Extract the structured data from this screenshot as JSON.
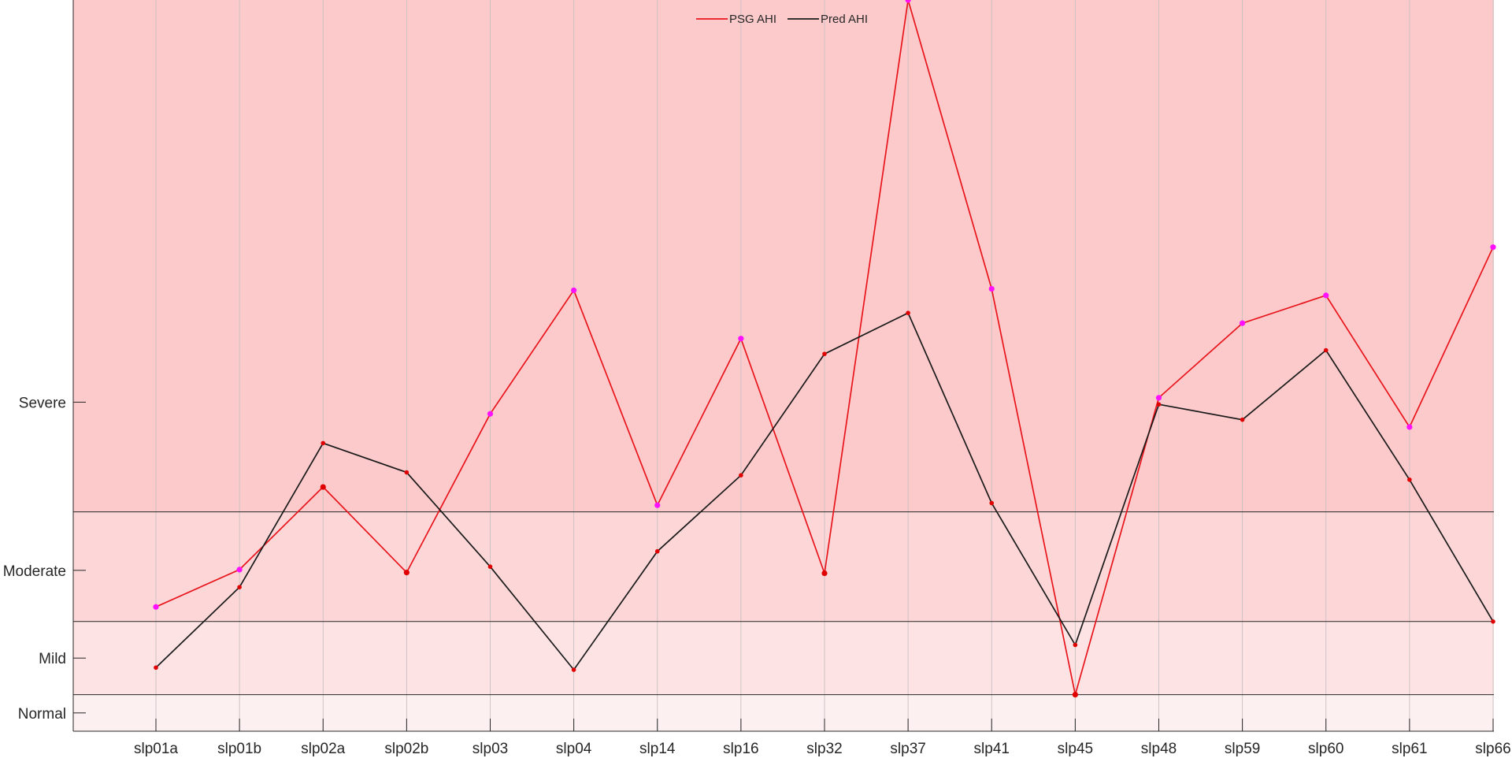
{
  "chart_data": {
    "type": "line",
    "categories": [
      "slp01a",
      "slp01b",
      "slp02a",
      "slp02b",
      "slp03",
      "slp04",
      "slp14",
      "slp16",
      "slp32",
      "slp37",
      "slp41",
      "slp45",
      "slp48",
      "slp59",
      "slp60",
      "slp61",
      "slp66"
    ],
    "ylim": [
      -5,
      95
    ],
    "bands": [
      {
        "label": "Normal",
        "from": -5,
        "to": 0,
        "color": "#fdf0f0"
      },
      {
        "label": "Mild",
        "from": 0,
        "to": 10,
        "color": "#fde3e4"
      },
      {
        "label": "Moderate",
        "from": 10,
        "to": 25,
        "color": "#fdd7d8"
      },
      {
        "label": "Severe",
        "from": 25,
        "to": 95,
        "color": "#fdcacb"
      }
    ],
    "y_tick_values": [
      -2.5,
      5,
      17,
      40
    ],
    "y_tick_labels": [
      "Normal",
      "Mild",
      "Moderate",
      "Severe"
    ],
    "series": [
      {
        "name": "PSG AHI",
        "color": "#e8141b",
        "values": [
          12,
          17.1,
          28.4,
          16.7,
          38.4,
          55.3,
          25.9,
          48.7,
          16.6,
          95,
          55.5,
          0,
          40.6,
          50.8,
          54.6,
          36.6,
          61.2
        ]
      },
      {
        "name": "Pred AHI",
        "color": "#1a1a1a",
        "values": [
          3.7,
          14.7,
          34.4,
          30.4,
          17.5,
          3.4,
          19.6,
          30,
          46.6,
          52.2,
          26.2,
          6.8,
          39.7,
          37.6,
          47.1,
          29.4,
          10
        ]
      }
    ],
    "marker_colors": [
      "#ff10ff",
      "#e00000"
    ],
    "grid_x": true,
    "legend_position": "top"
  }
}
